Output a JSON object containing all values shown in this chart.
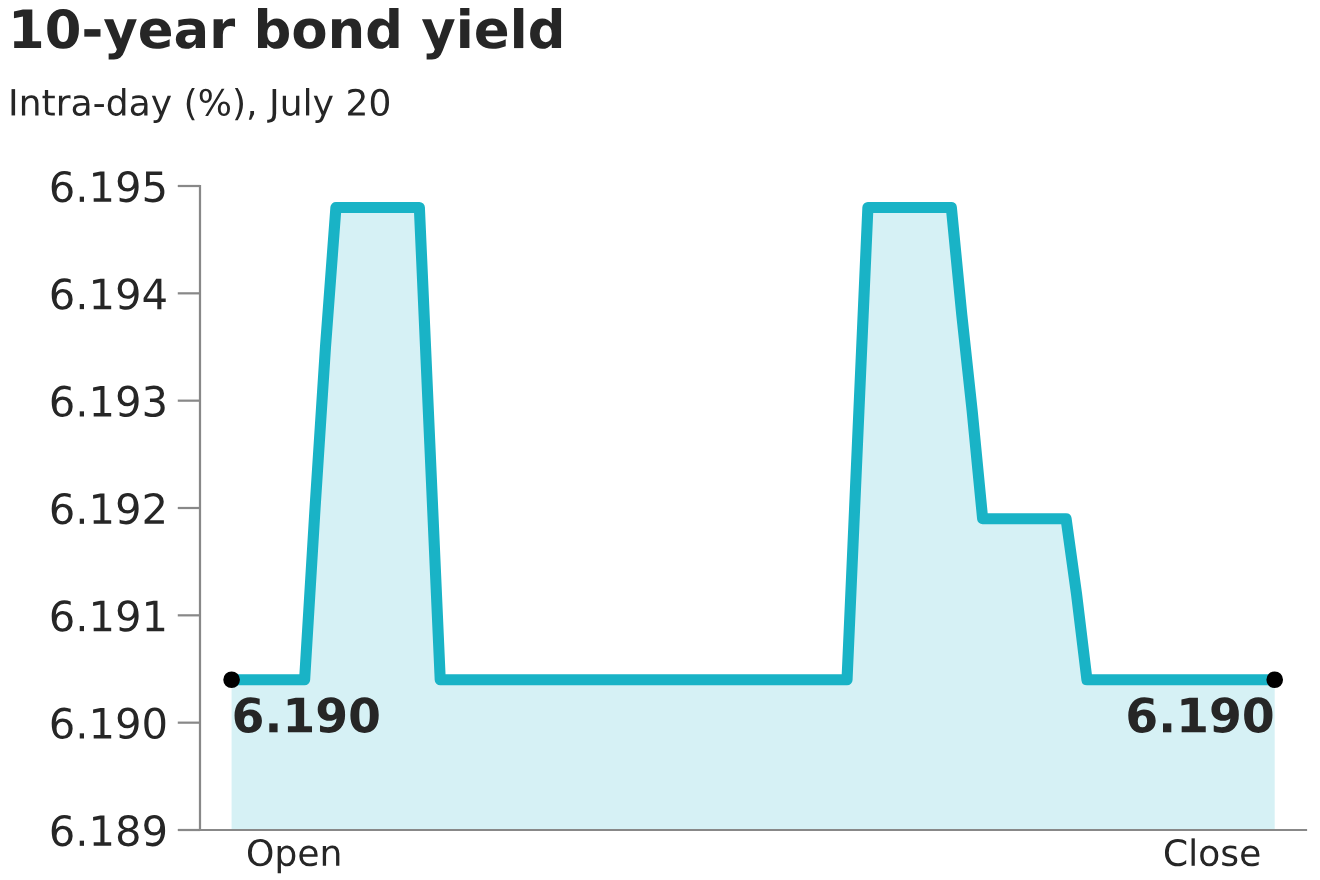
{
  "chart_data": {
    "type": "area",
    "title": "10-year bond yield",
    "subtitle": "Intra-day (%), July 20",
    "categories": [
      null,
      null,
      null,
      null,
      null,
      null,
      "Open",
      null,
      null,
      null,
      null,
      null,
      null,
      null,
      null,
      null,
      null,
      null,
      null,
      null,
      null,
      null,
      null,
      null,
      null,
      null,
      null,
      null,
      null,
      null,
      null,
      null,
      null,
      null,
      null,
      null,
      null,
      null,
      null,
      null,
      null,
      null,
      null,
      null,
      null,
      null,
      null,
      null,
      null,
      null,
      null,
      null,
      null,
      null,
      null,
      null,
      null,
      null,
      null,
      null,
      null,
      null,
      null,
      null,
      null,
      null,
      null,
      null,
      null,
      null,
      null,
      null,
      null,
      null,
      null,
      null,
      null,
      null,
      null,
      null,
      null,
      null,
      null,
      null,
      null,
      null,
      null,
      null,
      null,
      null,
      null,
      null,
      null,
      null,
      "Close",
      null,
      null,
      null,
      null,
      null,
      null
    ],
    "series": [
      {
        "color": "#19b3c6",
        "values": [
          6.1904,
          6.1904,
          6.1904,
          6.1904,
          6.1904,
          6.1904,
          6.1904,
          6.1904,
          6.192,
          6.1935,
          6.1948,
          6.1948,
          6.1948,
          6.1948,
          6.1948,
          6.1948,
          6.1948,
          6.1948,
          6.1948,
          6.1926,
          6.1904,
          6.1904,
          6.1904,
          6.1904,
          6.1904,
          6.1904,
          6.1904,
          6.1904,
          6.1904,
          6.1904,
          6.1904,
          6.1904,
          6.1904,
          6.1904,
          6.1904,
          6.1904,
          6.1904,
          6.1904,
          6.1904,
          6.1904,
          6.1904,
          6.1904,
          6.1904,
          6.1904,
          6.1904,
          6.1904,
          6.1904,
          6.1904,
          6.1904,
          6.1904,
          6.1904,
          6.1904,
          6.1904,
          6.1904,
          6.1904,
          6.1904,
          6.1904,
          6.1904,
          6.1904,
          6.1904,
          6.1926,
          6.1948,
          6.1948,
          6.1948,
          6.1948,
          6.1948,
          6.1948,
          6.1948,
          6.1948,
          6.1948,
          6.1938,
          6.1929,
          6.1919,
          6.1919,
          6.1919,
          6.1919,
          6.1919,
          6.1919,
          6.1919,
          6.1919,
          6.1919,
          6.1912,
          6.1904,
          6.1904,
          6.1904,
          6.1904,
          6.1904,
          6.1904,
          6.1904,
          6.1904,
          6.1904,
          6.1904,
          6.1904,
          6.1904,
          6.1904,
          6.1904,
          6.1904,
          6.1904,
          6.1904,
          6.1904,
          6.1904
        ],
        "value_labels": [
          "6.190",
          null,
          null,
          null,
          null,
          null,
          null,
          null,
          null,
          null,
          null,
          null,
          null,
          null,
          null,
          null,
          null,
          null,
          null,
          null,
          null,
          null,
          null,
          null,
          null,
          null,
          null,
          null,
          null,
          null,
          null,
          null,
          null,
          null,
          null,
          null,
          null,
          null,
          null,
          null,
          null,
          null,
          null,
          null,
          null,
          null,
          null,
          null,
          null,
          null,
          null,
          null,
          null,
          null,
          null,
          null,
          null,
          null,
          null,
          null,
          null,
          null,
          null,
          null,
          null,
          null,
          null,
          null,
          null,
          null,
          null,
          null,
          null,
          null,
          null,
          null,
          null,
          null,
          null,
          null,
          null,
          null,
          null,
          null,
          null,
          null,
          null,
          null,
          null,
          null,
          null,
          null,
          null,
          null,
          null,
          null,
          null,
          null,
          null,
          null,
          "6.190"
        ]
      }
    ],
    "ylim": [
      6.189,
      6.195
    ],
    "yticks": [
      6.189,
      {
        "value": 6.19,
        "label": "6.190"
      },
      6.191,
      6.192,
      6.193,
      6.194,
      6.195
    ],
    "grid": false,
    "marker": "none",
    "line_style": "solid"
  }
}
